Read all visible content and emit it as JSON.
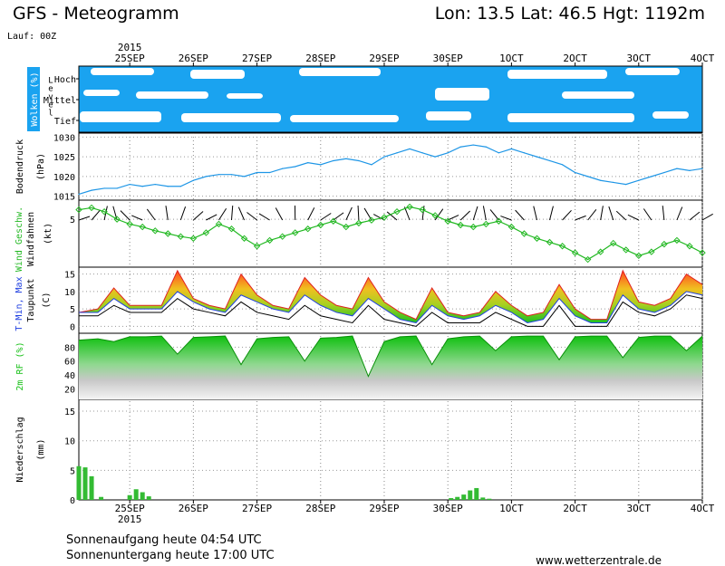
{
  "header": {
    "title": "GFS - Meteogramm",
    "location": "Lon: 13.5 Lat: 46.5 Hgt: 1192m",
    "run": "Lauf: 00Z"
  },
  "footer": {
    "sunrise": "Sonnenaufgang heute 04:54 UTC",
    "sunset": "Sonnenuntergang heute 17:00 UTC",
    "website": "www.wetterzentrale.de"
  },
  "colors": {
    "cloud_blue": "#1aa3f0",
    "pressure_line": "#1e96e6",
    "wind_green": "#22b822",
    "tmax_red": "#e02020",
    "tmin_blue": "#2040e0",
    "rh_green": "#18c018",
    "precip_green": "#33bb33"
  },
  "chart_data": {
    "type": "line",
    "x_axis": {
      "year_label": "2015",
      "dates": [
        "25SEP",
        "26SEP",
        "27SEP",
        "28SEP",
        "29SEP",
        "30SEP",
        "1OCT",
        "2OCT",
        "3OCT",
        "4OCT"
      ],
      "date_ticks": [
        25,
        26,
        27,
        28,
        29,
        30,
        31,
        32,
        33,
        34
      ],
      "tick_labels": [
        "25SEP",
        "26SEP",
        "27SEP",
        "28SEP",
        "29SEP",
        "30SEP",
        "1OCT",
        "2OCT",
        "3OCT",
        "4OCT"
      ],
      "xlim": [
        24.2,
        34.0
      ]
    },
    "panels": [
      {
        "id": "clouds",
        "ylabel": "Wolken (%)",
        "axis_word": "Level",
        "levels": [
          "Hoch",
          "Mittel",
          "Tief"
        ],
        "note": "cloud cover by level; white = clear, blue = cloud"
      },
      {
        "id": "pressure",
        "ylabel": "Bodendruck",
        "unit": "(hPa)",
        "ylim": [
          1014,
          1031
        ],
        "yticks": [
          1015,
          1020,
          1025,
          1030
        ],
        "x": [
          24.2,
          24.4,
          24.6,
          24.8,
          25.0,
          25.2,
          25.4,
          25.6,
          25.8,
          26.0,
          26.2,
          26.4,
          26.6,
          26.8,
          27.0,
          27.2,
          27.4,
          27.6,
          27.8,
          28.0,
          28.2,
          28.4,
          28.6,
          28.8,
          29.0,
          29.2,
          29.4,
          29.6,
          29.8,
          30.0,
          30.2,
          30.4,
          30.6,
          30.8,
          31.0,
          31.2,
          31.4,
          31.6,
          31.8,
          32.0,
          32.2,
          32.4,
          32.6,
          32.8,
          33.0,
          33.2,
          33.4,
          33.6,
          33.8,
          34.0
        ],
        "values": [
          1015.5,
          1016.5,
          1017,
          1017,
          1018,
          1017.5,
          1018,
          1017.5,
          1017.5,
          1019,
          1020,
          1020.5,
          1020.5,
          1020,
          1021,
          1021,
          1022,
          1022.5,
          1023.5,
          1023,
          1024,
          1024.5,
          1024,
          1023,
          1025,
          1026,
          1027,
          1026,
          1025,
          1026,
          1027.5,
          1028,
          1027.5,
          1026,
          1027,
          1026,
          1025,
          1024,
          1023,
          1021,
          1020,
          1019,
          1018.5,
          1018,
          1019,
          1020,
          1021,
          1022,
          1021.5,
          1022
        ]
      },
      {
        "id": "wind",
        "ylabel": "Wind Geschw.",
        "ylabel2": "Windfahnen",
        "unit": "(kt)",
        "ylim": [
          0,
          7
        ],
        "yticks": [
          5
        ],
        "x": [
          24.2,
          24.4,
          24.6,
          24.8,
          25.0,
          25.2,
          25.4,
          25.6,
          25.8,
          26.0,
          26.2,
          26.4,
          26.6,
          26.8,
          27.0,
          27.2,
          27.4,
          27.6,
          27.8,
          28.0,
          28.2,
          28.4,
          28.6,
          28.8,
          29.0,
          29.2,
          29.4,
          29.6,
          29.8,
          30.0,
          30.2,
          30.4,
          30.6,
          30.8,
          31.0,
          31.2,
          31.4,
          31.6,
          31.8,
          32.0,
          32.2,
          32.4,
          32.6,
          32.8,
          33.0,
          33.2,
          33.4,
          33.6,
          33.8,
          34.0
        ],
        "values": [
          6,
          6.2,
          5.8,
          5,
          4.5,
          4.2,
          3.8,
          3.5,
          3.2,
          3,
          3.6,
          4.5,
          4,
          3,
          2.2,
          2.8,
          3.2,
          3.6,
          4,
          4.4,
          4.8,
          4.2,
          4.6,
          4.9,
          5.2,
          5.8,
          6.3,
          6,
          5.4,
          4.8,
          4.4,
          4.2,
          4.5,
          4.8,
          4.2,
          3.5,
          3,
          2.6,
          2.2,
          1.5,
          0.8,
          1.6,
          2.5,
          1.8,
          1.2,
          1.6,
          2.4,
          2.8,
          2.2,
          1.5
        ]
      },
      {
        "id": "temperature",
        "ylabel": "T-Min, Max",
        "ylabel2": "Taupunkt",
        "unit": "(C)",
        "ylim": [
          -2,
          17
        ],
        "yticks": [
          0,
          5,
          10,
          15
        ],
        "x": [
          24.2,
          24.5,
          24.75,
          25.0,
          25.25,
          25.5,
          25.75,
          26.0,
          26.25,
          26.5,
          26.75,
          27.0,
          27.25,
          27.5,
          27.75,
          28.0,
          28.25,
          28.5,
          28.75,
          29.0,
          29.25,
          29.5,
          29.75,
          30.0,
          30.25,
          30.5,
          30.75,
          31.0,
          31.25,
          31.5,
          31.75,
          32.0,
          32.25,
          32.5,
          32.75,
          33.0,
          33.25,
          33.5,
          33.75,
          34.0
        ],
        "series": [
          {
            "name": "T-Max",
            "values": [
              4,
              5,
              11,
              6,
              6,
              6,
              16,
              8,
              6,
              5,
              15,
              9,
              6,
              5,
              14,
              9,
              6,
              5,
              14,
              7,
              4,
              2,
              11,
              4,
              3,
              4,
              10,
              6,
              3,
              4,
              12,
              5,
              2,
              2,
              16,
              7,
              6,
              8,
              15,
              12
            ]
          },
          {
            "name": "T-Min",
            "values": [
              4,
              4,
              8,
              5,
              5,
              5,
              10,
              7,
              5,
              4,
              9,
              7,
              5,
              4,
              9,
              6,
              4,
              3,
              8,
              5,
              2,
              1,
              6,
              3,
              2,
              3,
              6,
              4,
              1,
              2,
              8,
              3,
              1,
              1,
              9,
              5,
              4,
              6,
              10,
              9
            ]
          },
          {
            "name": "Taupunkt",
            "values": [
              3,
              3,
              6,
              4,
              4,
              4,
              8,
              5,
              4,
              3,
              7,
              4,
              3,
              2,
              6,
              3,
              2,
              1,
              6,
              2,
              1,
              0,
              4,
              1,
              1,
              1,
              4,
              2,
              0,
              0,
              6,
              0,
              0,
              0,
              7,
              4,
              3,
              5,
              9,
              8
            ]
          }
        ]
      },
      {
        "id": "humidity",
        "ylabel": "2m RF (%)",
        "ylim": [
          5,
          100
        ],
        "yticks": [
          20,
          40,
          60,
          80
        ],
        "x": [
          24.2,
          24.5,
          24.75,
          25.0,
          25.25,
          25.5,
          25.75,
          26.0,
          26.25,
          26.5,
          26.75,
          27.0,
          27.25,
          27.5,
          27.75,
          28.0,
          28.25,
          28.5,
          28.75,
          29.0,
          29.25,
          29.5,
          29.75,
          30.0,
          30.25,
          30.5,
          30.75,
          31.0,
          31.25,
          31.5,
          31.75,
          32.0,
          32.25,
          32.5,
          32.75,
          33.0,
          33.25,
          33.5,
          33.75,
          34.0
        ],
        "values": [
          90,
          92,
          88,
          95,
          95,
          96,
          70,
          94,
          95,
          96,
          55,
          92,
          94,
          95,
          60,
          93,
          94,
          96,
          38,
          88,
          95,
          96,
          55,
          92,
          95,
          96,
          75,
          95,
          96,
          96,
          62,
          95,
          96,
          96,
          65,
          94,
          96,
          96,
          75,
          96
        ]
      },
      {
        "id": "precipitation",
        "ylabel": "Niederschlag",
        "unit": "(mm)",
        "ylim": [
          0,
          17
        ],
        "yticks": [
          0,
          5,
          10,
          15
        ],
        "x": [
          24.2,
          24.3,
          24.4,
          24.55,
          25.0,
          25.1,
          25.2,
          25.3,
          30.05,
          30.15,
          30.25,
          30.35,
          30.45,
          30.55,
          30.65
        ],
        "values": [
          5.7,
          5.5,
          4.0,
          0.5,
          0.8,
          1.8,
          1.3,
          0.6,
          0.3,
          0.5,
          0.9,
          1.6,
          2.0,
          0.4,
          0.2
        ]
      }
    ]
  }
}
